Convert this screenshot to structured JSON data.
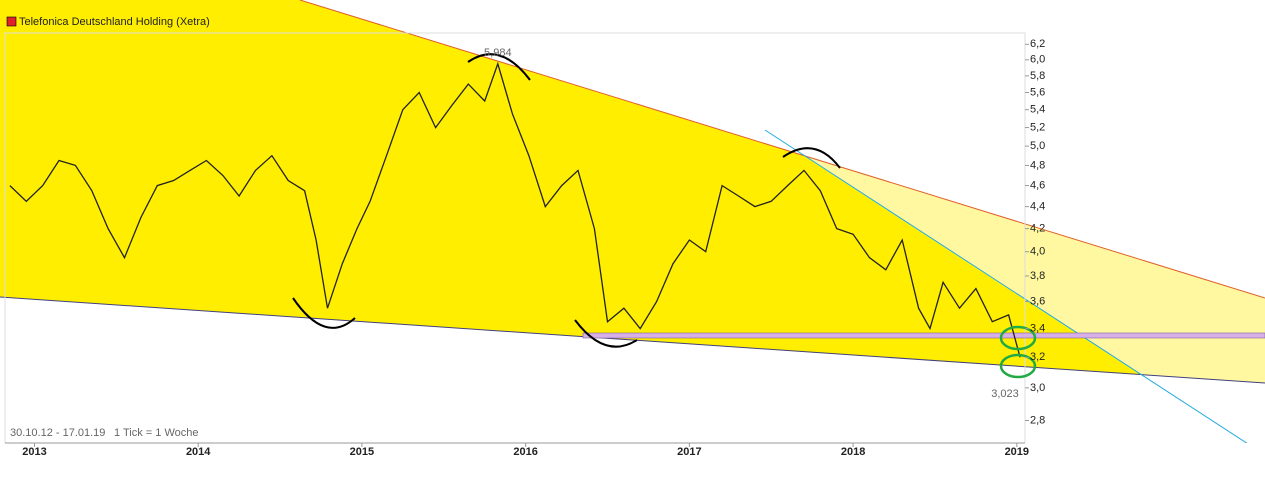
{
  "chart_data": {
    "type": "line",
    "title": "Telefonica Deutschland Holding (Xetra)",
    "legend_color": "#e0202a",
    "date_range": "30.10.12 - 17.01.19",
    "tick_note": "1 Tick = 1 Woche",
    "log_scale": true,
    "xlim": [
      2012.82,
      2019.05
    ],
    "xticks": [
      2013,
      2014,
      2015,
      2016,
      2017,
      2018,
      2019
    ],
    "ylim": [
      2.67,
      6.35
    ],
    "yticks": [
      {
        "value": 2.8,
        "label": "2,8"
      },
      {
        "value": 3.0,
        "label": "3,0"
      },
      {
        "value": 3.2,
        "label": "3,2"
      },
      {
        "value": 3.4,
        "label": "3,4"
      },
      {
        "value": 3.6,
        "label": "3,6"
      },
      {
        "value": 3.8,
        "label": "3,8"
      },
      {
        "value": 4.0,
        "label": "4,0"
      },
      {
        "value": 4.2,
        "label": "4,2"
      },
      {
        "value": 4.4,
        "label": "4,4"
      },
      {
        "value": 4.6,
        "label": "4,6"
      },
      {
        "value": 4.8,
        "label": "4,8"
      },
      {
        "value": 5.0,
        "label": "5,0"
      },
      {
        "value": 5.2,
        "label": "5,2"
      },
      {
        "value": 5.4,
        "label": "5,4"
      },
      {
        "value": 5.6,
        "label": "5,6"
      },
      {
        "value": 5.8,
        "label": "5,8"
      },
      {
        "value": 6.0,
        "label": "6,0"
      },
      {
        "value": 6.2,
        "label": "6,2"
      }
    ],
    "high": {
      "value": 5.984,
      "label": "5,984"
    },
    "low": {
      "value": 3.023,
      "label": "3,023"
    },
    "series": [
      {
        "name": "Telefonica Deutschland Holding (Xetra)",
        "color": "#222222",
        "x": [
          2012.85,
          2012.95,
          2013.05,
          2013.15,
          2013.25,
          2013.35,
          2013.45,
          2013.55,
          2013.65,
          2013.75,
          2013.85,
          2013.95,
          2014.05,
          2014.15,
          2014.25,
          2014.35,
          2014.45,
          2014.55,
          2014.65,
          2014.72,
          2014.79,
          2014.88,
          2014.97,
          2015.05,
          2015.15,
          2015.25,
          2015.35,
          2015.45,
          2015.55,
          2015.65,
          2015.75,
          2015.83,
          2015.92,
          2016.02,
          2016.12,
          2016.22,
          2016.32,
          2016.42,
          2016.5,
          2016.6,
          2016.7,
          2016.8,
          2016.9,
          2017.0,
          2017.1,
          2017.2,
          2017.3,
          2017.4,
          2017.5,
          2017.6,
          2017.7,
          2017.8,
          2017.9,
          2018.0,
          2018.1,
          2018.2,
          2018.3,
          2018.4,
          2018.47,
          2018.55,
          2018.65,
          2018.75,
          2018.85,
          2018.95,
          2019.02
        ],
        "values": [
          4.6,
          4.45,
          4.6,
          4.85,
          4.8,
          4.55,
          4.2,
          3.95,
          4.3,
          4.6,
          4.65,
          4.75,
          4.85,
          4.7,
          4.5,
          4.75,
          4.9,
          4.65,
          4.55,
          4.1,
          3.55,
          3.9,
          4.2,
          4.45,
          4.9,
          5.4,
          5.6,
          5.2,
          5.45,
          5.7,
          5.5,
          5.95,
          5.35,
          4.9,
          4.4,
          4.6,
          4.75,
          4.2,
          3.45,
          3.55,
          3.4,
          3.6,
          3.9,
          4.1,
          4.0,
          4.6,
          4.5,
          4.4,
          4.45,
          4.6,
          4.75,
          4.55,
          4.2,
          4.15,
          3.95,
          3.85,
          4.1,
          3.55,
          3.4,
          3.75,
          3.55,
          3.7,
          3.45,
          3.5,
          3.2
        ]
      }
    ]
  }
}
